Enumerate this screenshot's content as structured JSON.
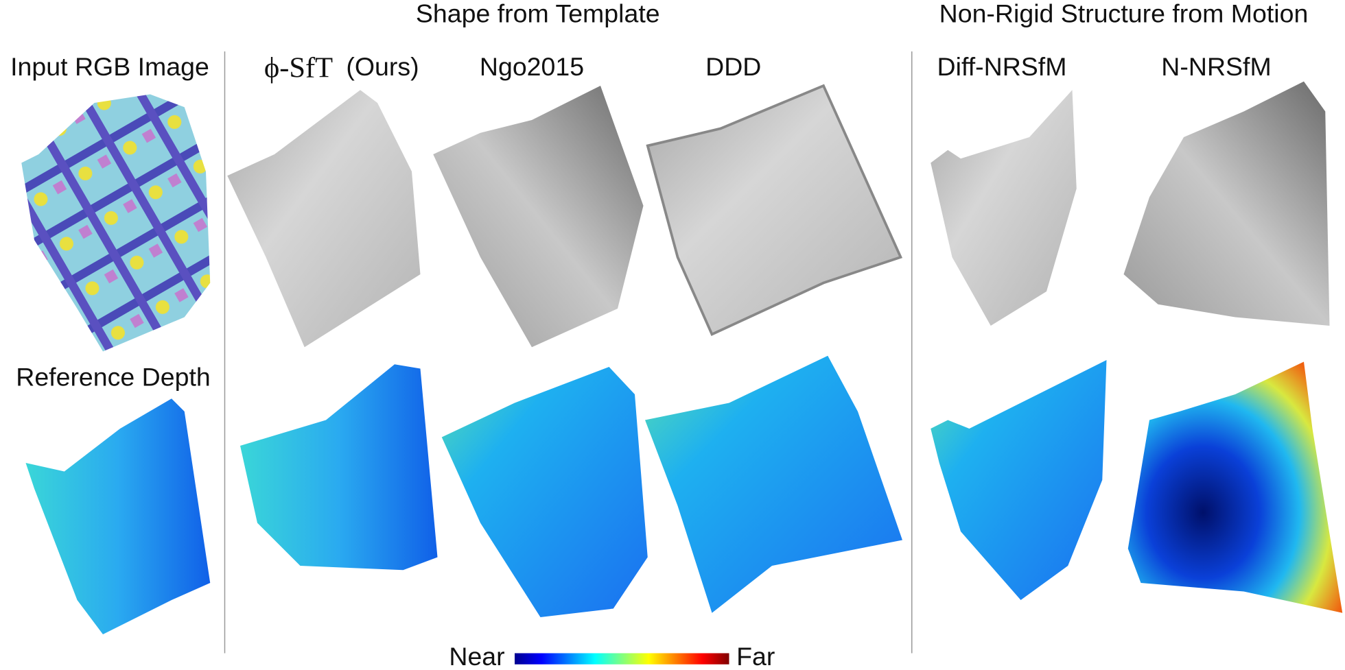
{
  "groups": [
    "Shape from Template",
    "Non-Rigid Structure from Motion"
  ],
  "columns": [
    {
      "name": "Input RGB Image"
    },
    {
      "name": "ϕ-SfT",
      "note": "(Ours)"
    },
    {
      "name": "Ngo2015"
    },
    {
      "name": "DDD"
    },
    {
      "name": "Diff-NRSfM"
    },
    {
      "name": "N-NRSfM"
    }
  ],
  "row_labels": [
    "Reference Depth"
  ],
  "colorbar": {
    "near": "Near",
    "far": "Far"
  }
}
